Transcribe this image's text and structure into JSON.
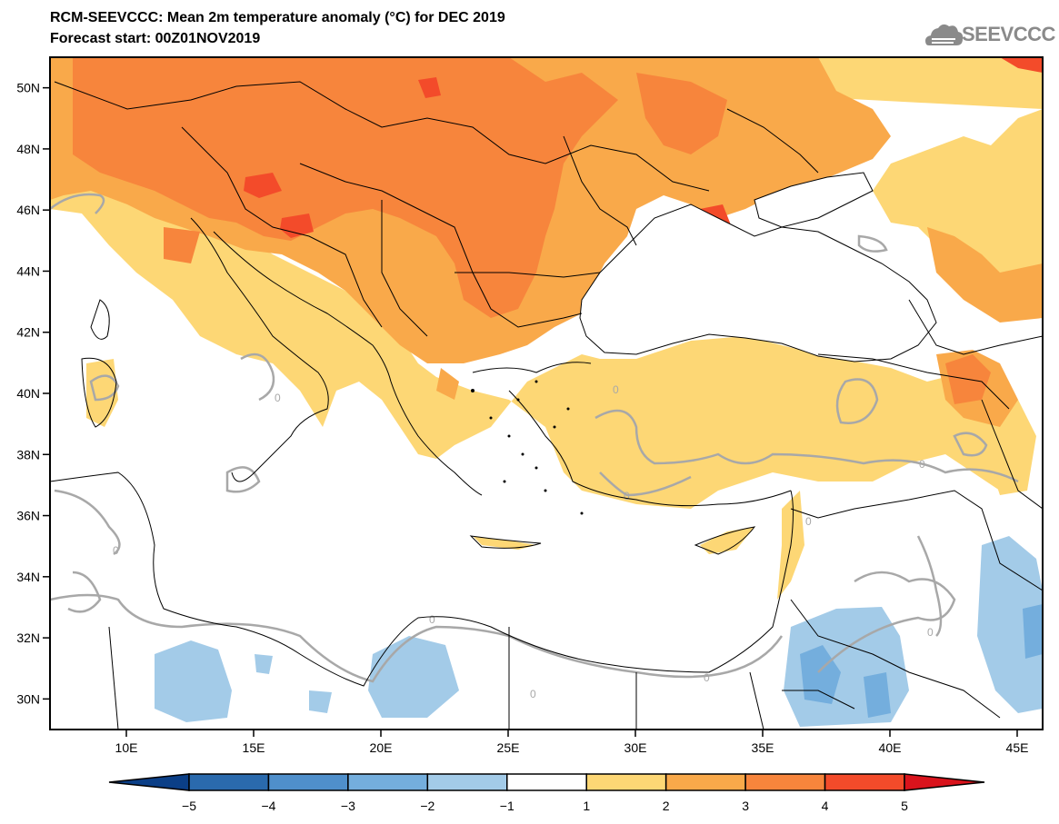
{
  "header": {
    "title": "RCM-SEEVCCC: Mean 2m temperature anomaly (°C) for DEC 2019",
    "subtitle": "Forecast start: 00Z01NOV2019"
  },
  "brand": {
    "logo_text": "SEEVCCC",
    "logo_icon": "cloud-icon"
  },
  "map": {
    "extent": {
      "lon_min": 7,
      "lon_max": 46,
      "lat_min": 29,
      "lat_max": 51
    },
    "lat_ticks": [
      {
        "value": 50,
        "label": "50N"
      },
      {
        "value": 48,
        "label": "48N"
      },
      {
        "value": 46,
        "label": "46N"
      },
      {
        "value": 44,
        "label": "44N"
      },
      {
        "value": 42,
        "label": "42N"
      },
      {
        "value": 40,
        "label": "40N"
      },
      {
        "value": 38,
        "label": "38N"
      },
      {
        "value": 36,
        "label": "36N"
      },
      {
        "value": 34,
        "label": "34N"
      },
      {
        "value": 32,
        "label": "32N"
      },
      {
        "value": 30,
        "label": "30N"
      }
    ],
    "lon_ticks": [
      {
        "value": 10,
        "label": "10E"
      },
      {
        "value": 15,
        "label": "15E"
      },
      {
        "value": 20,
        "label": "20E"
      },
      {
        "value": 25,
        "label": "25E"
      },
      {
        "value": 30,
        "label": "30E"
      },
      {
        "value": 35,
        "label": "35E"
      },
      {
        "value": 40,
        "label": "40E"
      },
      {
        "value": 45,
        "label": "45E"
      }
    ],
    "contour_label": "0",
    "colors": {
      "sea": "#ffffff",
      "border": "#000000",
      "zero_contour": "#a8a8a8"
    }
  },
  "colorbar": {
    "labels": [
      "−5",
      "−4",
      "−3",
      "−2",
      "−1",
      "1",
      "2",
      "3",
      "4",
      "5"
    ],
    "colors": [
      "#0b3f87",
      "#2a6aad",
      "#4f8fcb",
      "#74aedd",
      "#a3cbe8",
      "#ffffff",
      "#fdd775",
      "#f9a94a",
      "#f7853c",
      "#f34b2a",
      "#d9131c"
    ]
  }
}
